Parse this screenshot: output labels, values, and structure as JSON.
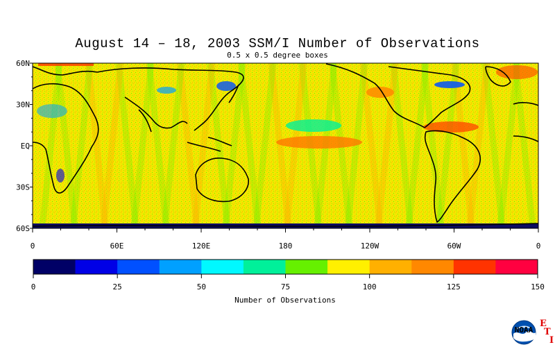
{
  "title": "August 14 – 18, 2003 SSM/I Number of Observations",
  "subtitle": "0.5 x 0.5 degree boxes",
  "map": {
    "lat_labels": [
      "60N",
      "30N",
      "EQ",
      "30S",
      "60S"
    ],
    "lon_labels": [
      "0",
      "60E",
      "120E",
      "180",
      "120W",
      "60W",
      "0"
    ],
    "lat_range": [
      -60,
      60
    ],
    "lon_range": [
      0,
      360
    ],
    "land_color": "#fcfc00",
    "continent_outline_color": "#000000"
  },
  "colorbar": {
    "colors": [
      "#000066",
      "#0000e6",
      "#0050ff",
      "#00a0ff",
      "#00f8ff",
      "#00f09a",
      "#66f000",
      "#fff000",
      "#ffb000",
      "#ff8800",
      "#ff3300",
      "#ff0040"
    ],
    "tick_labels": [
      "0",
      "25",
      "50",
      "75",
      "100",
      "125",
      "150"
    ],
    "label": "Number of Observations",
    "range": [
      0,
      150
    ]
  },
  "logo": {
    "text": "NOAA",
    "eti_letters": [
      "E",
      "T",
      "I"
    ]
  }
}
